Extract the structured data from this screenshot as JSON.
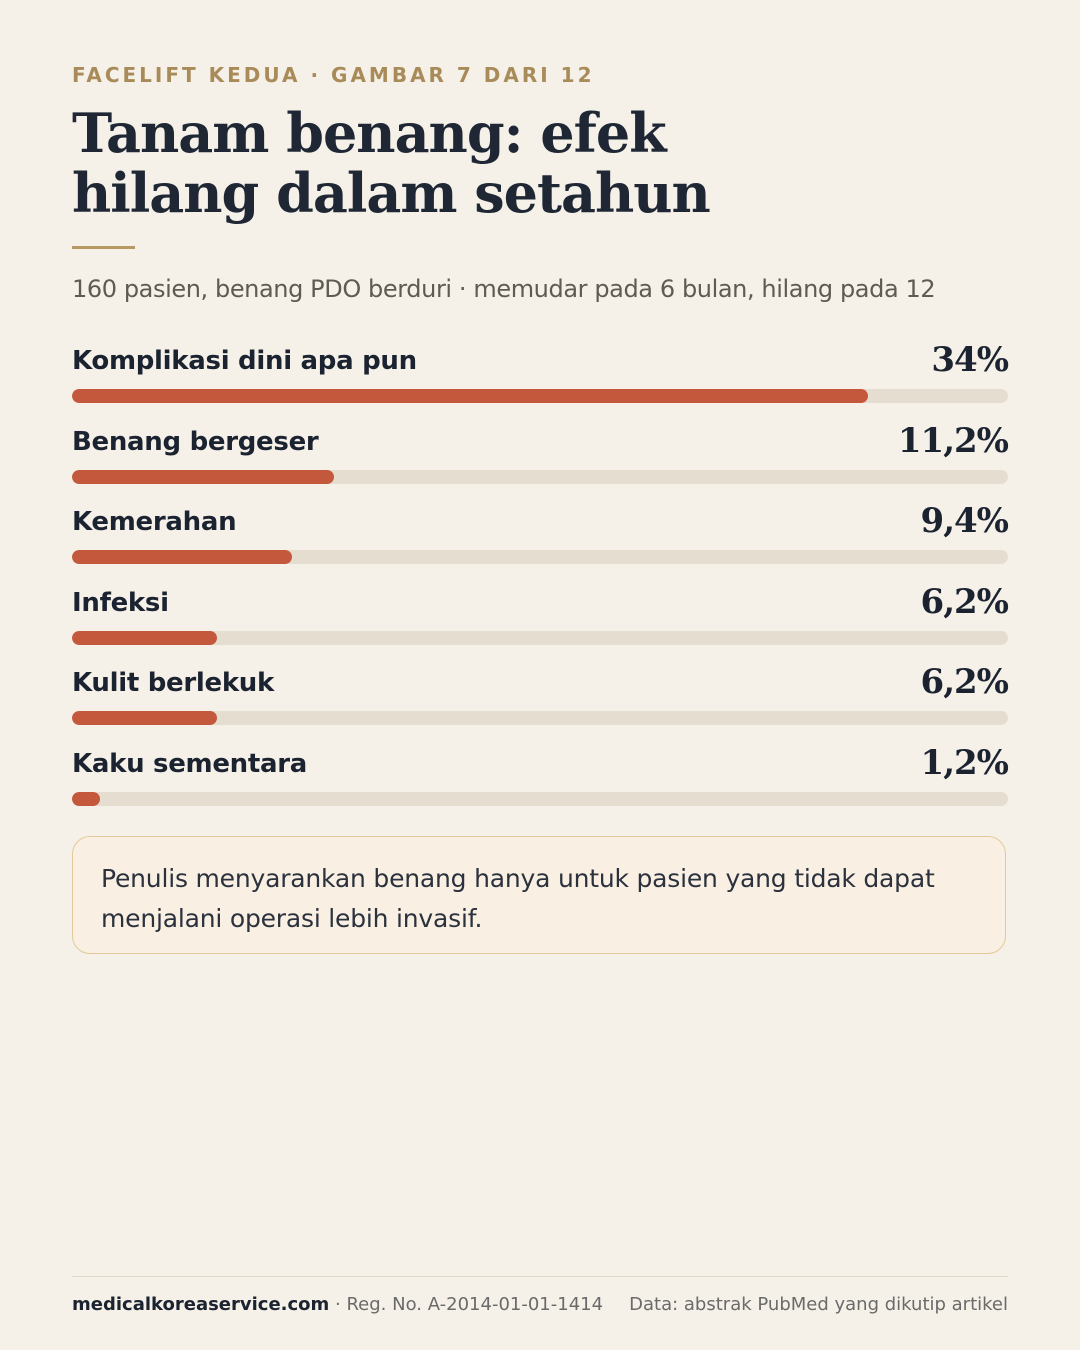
{
  "header": {
    "eyebrow": "FACELIFT KEDUA · GAMBAR 7 DARI 12",
    "title": "Tanam benang: efek hilang dalam setahun",
    "subtitle": "160 pasien, benang PDO berduri · memudar pada 6 bulan, hilang pada 12"
  },
  "chart_data": {
    "type": "bar",
    "orientation": "horizontal",
    "categories": [
      "Komplikasi dini apa pun",
      "Benang bergeser",
      "Kemerahan",
      "Infeksi",
      "Kulit berlekuk",
      "Kaku sementara"
    ],
    "values": [
      34,
      11.2,
      9.4,
      6.2,
      6.2,
      1.2
    ],
    "value_labels": [
      "34%",
      "11,2%",
      "9,4%",
      "6,2%",
      "6,2%",
      "1,2%"
    ],
    "unit": "%",
    "xlim": [
      0,
      40
    ],
    "grid": false,
    "legend": "none",
    "colors": {
      "fill": "#c4583d",
      "track": "#e5ddd0"
    }
  },
  "note": {
    "text": "Penulis menyarankan benang hanya untuk pasien yang tidak dapat menjalani operasi lebih invasif."
  },
  "footer": {
    "site": "medicalkoreaservice.com",
    "reg": " · Reg. No. A-2014-01-01-1414",
    "source": "Data: abstrak PubMed yang dikutip artikel"
  }
}
